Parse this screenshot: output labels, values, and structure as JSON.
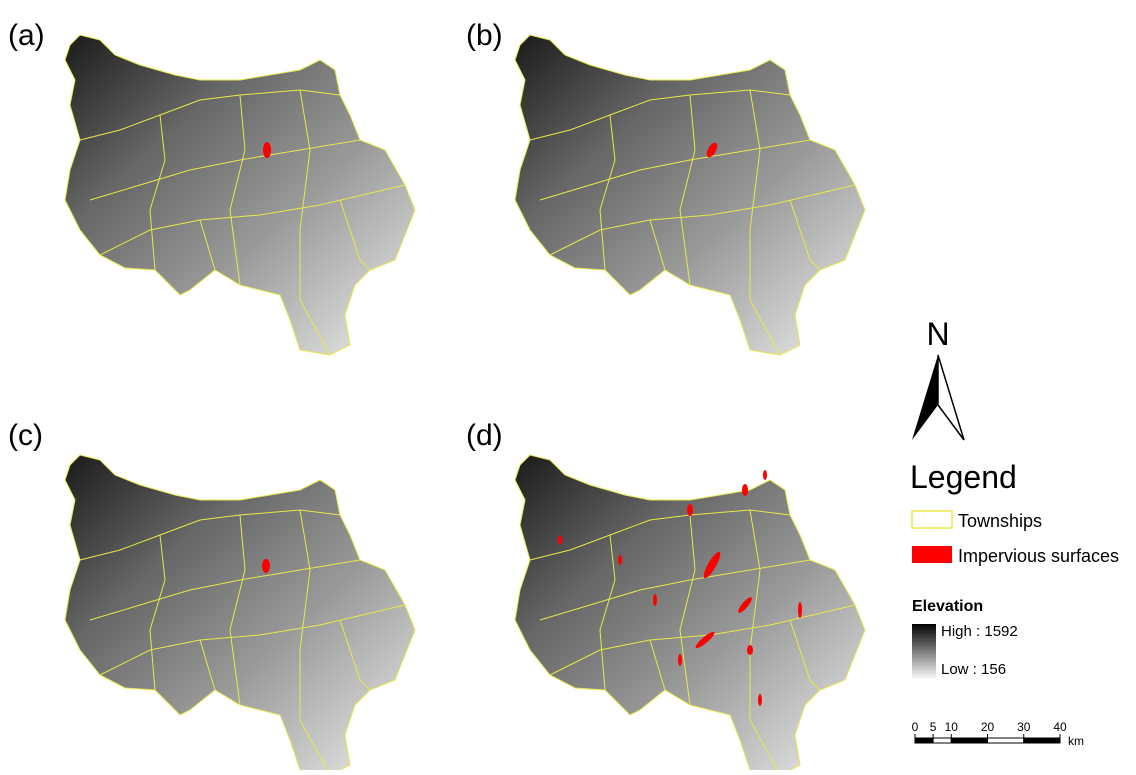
{
  "panels": [
    {
      "label": "(a)"
    },
    {
      "label": "(b)"
    },
    {
      "label": "(c)"
    },
    {
      "label": "(d)"
    }
  ],
  "north": "N",
  "legend": {
    "title": "Legend",
    "items": [
      "Townships",
      "Impervious surfaces"
    ],
    "elevation": {
      "title": "Elevation",
      "high": "High : 1592",
      "low": "Low : 156"
    }
  },
  "scale_bar": {
    "ticks": [
      0,
      5,
      10,
      20,
      30,
      40
    ],
    "unit": "km"
  }
}
